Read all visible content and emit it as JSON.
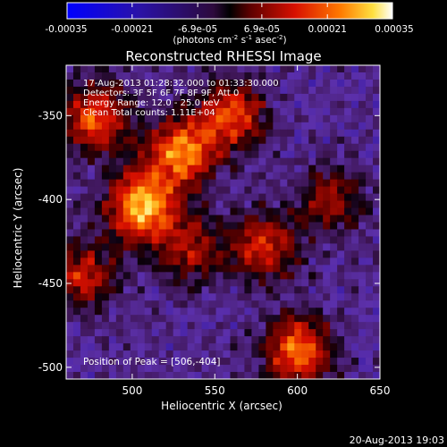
{
  "colorbar": {
    "tick_labels": [
      "-0.00035",
      "-0.00021",
      "-6.9e-05",
      "6.9e-05",
      "0.00021",
      "0.00035"
    ],
    "tick_values": [
      -0.00035,
      -0.00021,
      -6.9e-05,
      6.9e-05,
      0.00021,
      0.00035
    ],
    "range": [
      -0.00035,
      0.00035
    ],
    "unit_label": "(photons cm",
    "unit_exp1": "-2",
    "unit_mid": " s",
    "unit_exp2": "-1",
    "unit_tail": " asec",
    "unit_exp3": "-2",
    "unit_close": ")"
  },
  "chart_data": {
    "type": "heatmap",
    "title": "Reconstructed RHESSI Image",
    "xlabel": "Heliocentric X (arcsec)",
    "ylabel": "Heliocentric Y (arcsec)",
    "xlim": [
      460,
      650
    ],
    "ylim": [
      -507,
      -320
    ],
    "x_ticks": [
      500,
      550,
      600,
      650
    ],
    "y_ticks": [
      -350,
      -400,
      -450,
      -500
    ],
    "annotations": [
      "17-Aug-2013 01:28:32.000 to 01:33:30.000",
      "Detectors: 3F 5F 6F 7F 8F 9F, Att 0",
      "Energy Range: 12.0 - 25.0 keV",
      "Clean     Total counts: 1.11E+04"
    ],
    "peak_label": "Position of Peak = [506,-404]",
    "peak": [
      506,
      -404
    ],
    "value_range": [
      -0.00035,
      0.00035
    ],
    "sources": [
      {
        "x": 506,
        "y": -404,
        "value": 0.00035
      },
      {
        "x": 530,
        "y": -372,
        "value": 0.00028
      },
      {
        "x": 478,
        "y": -352,
        "value": 0.00022
      },
      {
        "x": 560,
        "y": -350,
        "value": 0.00021
      },
      {
        "x": 600,
        "y": -490,
        "value": 0.00026
      },
      {
        "x": 580,
        "y": -428,
        "value": 0.00017
      },
      {
        "x": 470,
        "y": -445,
        "value": 0.00015
      },
      {
        "x": 535,
        "y": -430,
        "value": 0.00012
      },
      {
        "x": 620,
        "y": -400,
        "value": 0.0001
      }
    ]
  },
  "footer": {
    "timestamp": "20-Aug-2013 19:03"
  }
}
